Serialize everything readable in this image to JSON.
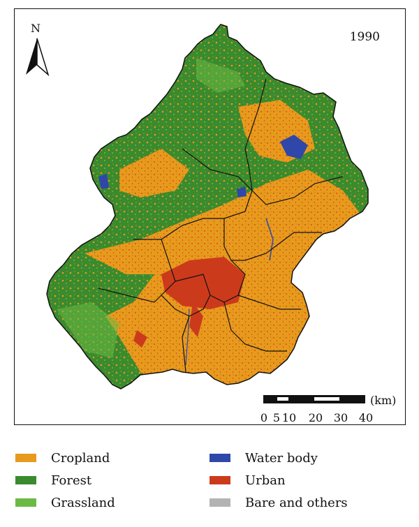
{
  "map": {
    "year": "1990",
    "north_label": "N",
    "scale": {
      "unit": "(km)",
      "ticks": [
        "0",
        "5",
        "10",
        "20",
        "30",
        "40"
      ]
    }
  },
  "legend": [
    {
      "label": "Cropland",
      "color": "#e89a1c"
    },
    {
      "label": "Forest",
      "color": "#3a8a2e"
    },
    {
      "label": "Grassland",
      "color": "#6cba45"
    },
    {
      "label": "Water body",
      "color": "#2f47a8"
    },
    {
      "label": "Urban",
      "color": "#cc3a1c"
    },
    {
      "label": "Bare and others",
      "color": "#b3b3b3"
    }
  ]
}
